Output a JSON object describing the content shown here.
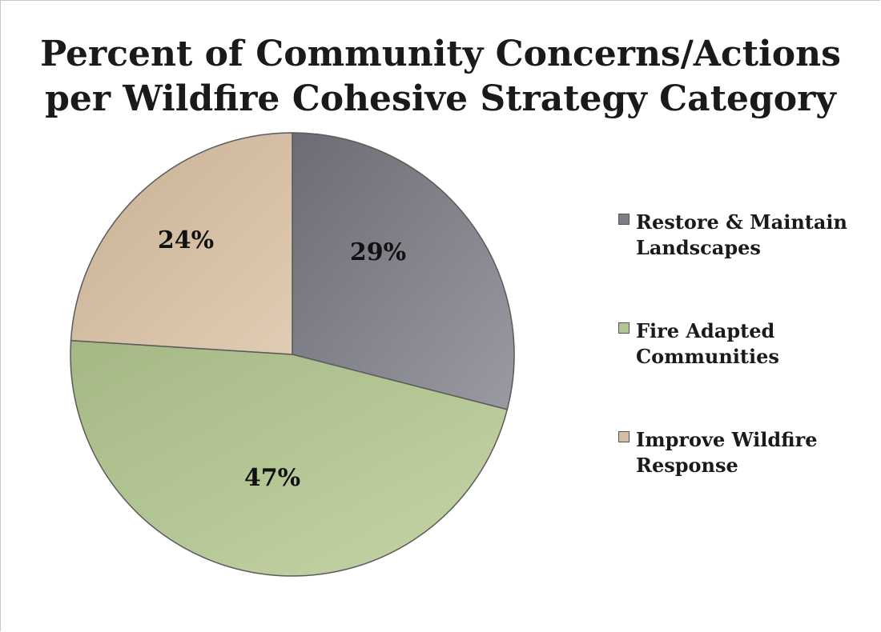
{
  "chart_data": {
    "type": "pie",
    "title_lines": [
      "Percent of Community Concerns/Actions",
      "per Wildfire Cohesive Strategy Category"
    ],
    "series": [
      {
        "name": "Restore & Maintain Landscapes",
        "label_lines": [
          "Restore & Maintain",
          "Landscapes"
        ],
        "value": 29,
        "data_label": "29%",
        "color": "#7d7d85"
      },
      {
        "name": "Fire Adapted Communities",
        "label_lines": [
          "Fire Adapted",
          "Communities"
        ],
        "value": 47,
        "data_label": "47%",
        "color": "#b3c592"
      },
      {
        "name": "Improve Wildfire Response",
        "label_lines": [
          "Improve Wildfire",
          "Response"
        ],
        "value": 24,
        "data_label": "24%",
        "color": "#d4bea4"
      }
    ],
    "legend_position": "right"
  }
}
